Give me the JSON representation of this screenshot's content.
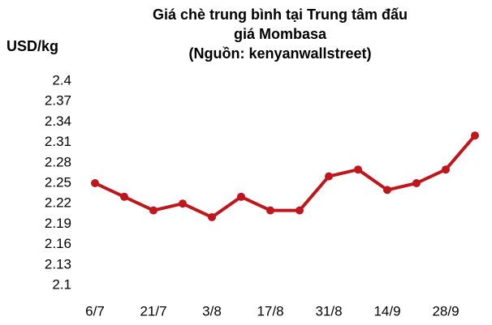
{
  "chart_data": {
    "type": "line",
    "title": [
      "Giá chè trung bình tại Trung tâm đấu",
      "giá Mombasa",
      "(Nguồn: kenyanwallstreet)"
    ],
    "y_label": "USD/kg",
    "categories": [
      "6/7",
      null,
      "21/7",
      null,
      "3/8",
      null,
      "17/8",
      null,
      "31/8",
      null,
      "14/9",
      null,
      "28/9",
      null
    ],
    "series": [
      {
        "name": "Giá chè",
        "color": "#c0161b",
        "values": [
          2.25,
          2.23,
          2.21,
          2.22,
          2.2,
          2.23,
          2.21,
          2.21,
          2.26,
          2.27,
          2.24,
          2.25,
          2.27,
          2.32
        ]
      }
    ],
    "ylim": [
      2.1,
      2.4
    ],
    "yticks": [
      2.1,
      2.13,
      2.16,
      2.19,
      2.22,
      2.25,
      2.28,
      2.31,
      2.34,
      2.37,
      2.4
    ],
    "grid": false
  }
}
